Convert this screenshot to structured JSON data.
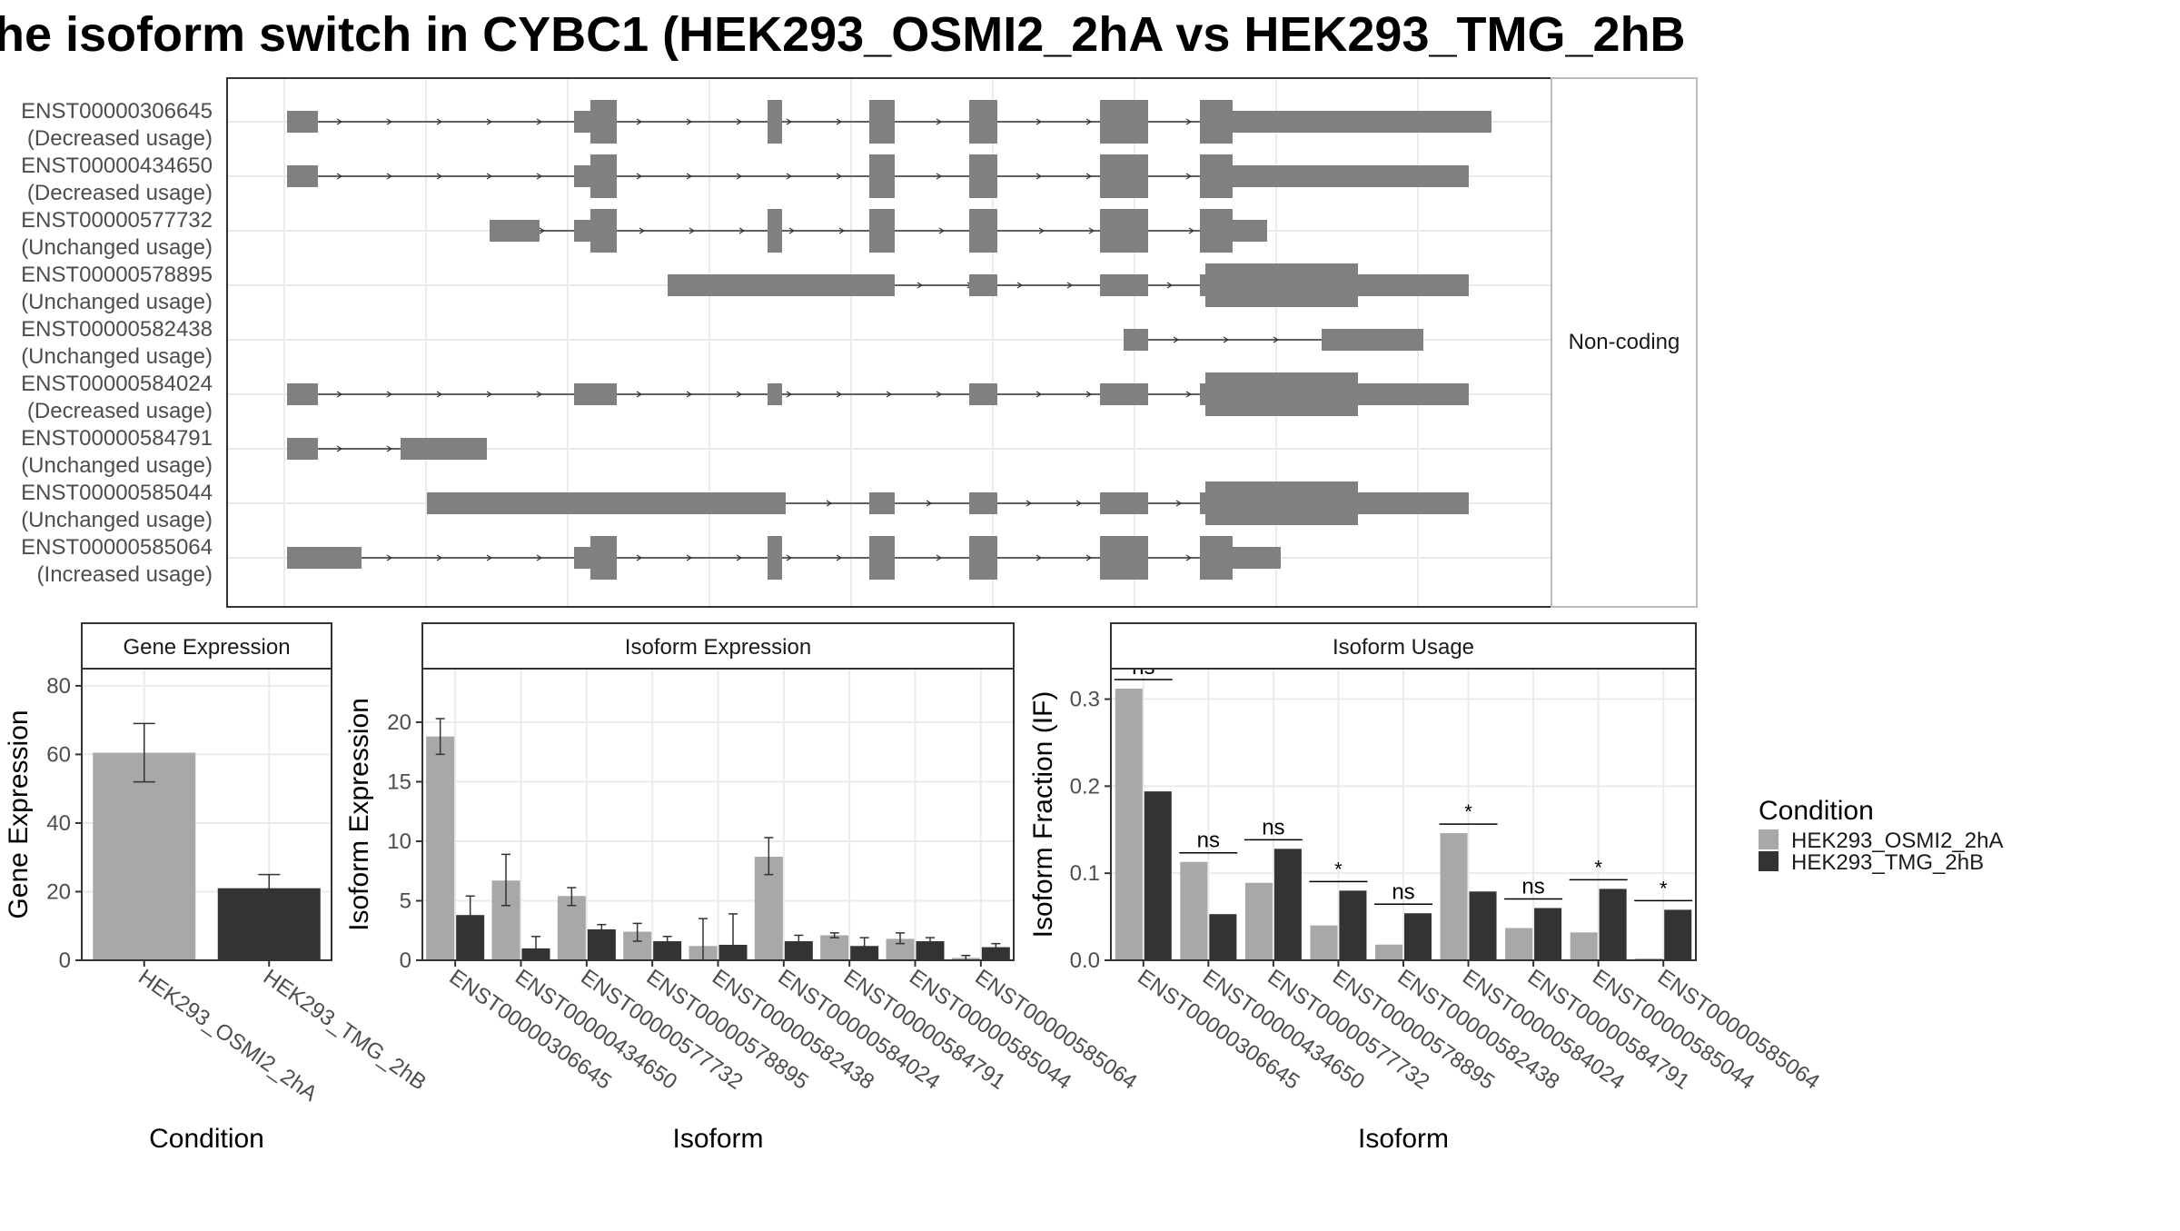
{
  "title": "he isoform switch in CYBC1 (HEK293_OSMI2_2hA vs HEK293_TMG_2hB",
  "colors": {
    "osmi": "#a8a8a8",
    "tmg": "#333333",
    "structure": "#808080",
    "grid": "#ebebeb",
    "panel_border": "#333333"
  },
  "chart_data": [
    {
      "type": "gene-structure",
      "strip_label": "Non-coding",
      "transcripts": [
        {
          "id": "ENST00000306645",
          "usage": "(Decreased usage)"
        },
        {
          "id": "ENST00000434650",
          "usage": "(Decreased usage)"
        },
        {
          "id": "ENST00000577732",
          "usage": "(Unchanged usage)"
        },
        {
          "id": "ENST00000578895",
          "usage": "(Unchanged usage)"
        },
        {
          "id": "ENST00000582438",
          "usage": "(Unchanged usage)"
        },
        {
          "id": "ENST00000584024",
          "usage": "(Decreased usage)"
        },
        {
          "id": "ENST00000584791",
          "usage": "(Unchanged usage)"
        },
        {
          "id": "ENST00000585044",
          "usage": "(Unchanged usage)"
        },
        {
          "id": "ENST00000585064",
          "usage": "(Increased usage)"
        }
      ]
    },
    {
      "type": "bar",
      "panel_title": "Gene Expression",
      "xlabel": "Condition",
      "ylabel": "Gene Expression",
      "ylim": [
        0,
        85
      ],
      "yticks": [
        0,
        20,
        40,
        60,
        80
      ],
      "categories": [
        "HEK293_OSMI2_2hA",
        "HEK293_TMG_2hB"
      ],
      "values": [
        60.5,
        21
      ],
      "errors": [
        [
          52,
          69
        ],
        [
          18,
          25
        ]
      ]
    },
    {
      "type": "bar",
      "panel_title": "Isoform Expression",
      "xlabel": "Isoform",
      "ylabel": "Isoform Expression",
      "ylim": [
        0,
        24.5
      ],
      "yticks": [
        0,
        5,
        10,
        15,
        20
      ],
      "categories": [
        "ENST00000306645",
        "ENST00000434650",
        "ENST00000577732",
        "ENST00000578895",
        "ENST00000582438",
        "ENST00000584024",
        "ENST00000584791",
        "ENST00000585044",
        "ENST00000585064"
      ],
      "series": [
        {
          "name": "HEK293_OSMI2_2hA",
          "values": [
            18.8,
            6.7,
            5.4,
            2.4,
            1.2,
            8.7,
            2.1,
            1.8,
            0.2
          ],
          "errors": [
            [
              17.3,
              20.3
            ],
            [
              4.6,
              8.9
            ],
            [
              4.6,
              6.1
            ],
            [
              1.6,
              3.1
            ],
            [
              0,
              3.5
            ],
            [
              7.2,
              10.3
            ],
            [
              1.9,
              2.3
            ],
            [
              1.4,
              2.3
            ],
            [
              0,
              0.4
            ]
          ]
        },
        {
          "name": "HEK293_TMG_2hB",
          "values": [
            3.8,
            1.0,
            2.6,
            1.6,
            1.3,
            1.6,
            1.2,
            1.6,
            1.1
          ],
          "errors": [
            [
              2.3,
              5.4
            ],
            [
              0,
              2.0
            ],
            [
              2.1,
              3.0
            ],
            [
              1.1,
              2.0
            ],
            [
              0,
              3.9
            ],
            [
              1.0,
              2.1
            ],
            [
              0.5,
              1.9
            ],
            [
              1.2,
              1.9
            ],
            [
              0.7,
              1.4
            ]
          ]
        }
      ]
    },
    {
      "type": "bar",
      "panel_title": "Isoform Usage",
      "xlabel": "Isoform",
      "ylabel": "Isoform Fraction (IF)",
      "ylim": [
        0,
        0.335
      ],
      "yticks": [
        "0.0",
        "0.1",
        "0.2",
        "0.3"
      ],
      "categories": [
        "ENST00000306645",
        "ENST00000434650",
        "ENST00000577732",
        "ENST00000578895",
        "ENST00000582438",
        "ENST00000584024",
        "ENST00000584791",
        "ENST00000585044",
        "ENST00000585064"
      ],
      "series": [
        {
          "name": "HEK293_OSMI2_2hA",
          "values": [
            0.312,
            0.113,
            0.089,
            0.04,
            0.018,
            0.146,
            0.037,
            0.032,
            0.002
          ]
        },
        {
          "name": "HEK293_TMG_2hB",
          "values": [
            0.194,
            0.053,
            0.128,
            0.08,
            0.054,
            0.079,
            0.06,
            0.082,
            0.058
          ]
        }
      ],
      "significance": [
        "ns",
        "ns",
        "ns",
        "*",
        "ns",
        "*",
        "ns",
        "*",
        "*"
      ]
    }
  ],
  "legend": {
    "title": "Condition",
    "items": [
      "HEK293_OSMI2_2hA",
      "HEK293_TMG_2hB"
    ]
  }
}
